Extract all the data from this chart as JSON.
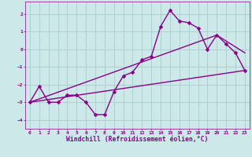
{
  "xlabel": "Windchill (Refroidissement éolien,°C)",
  "ylabel": "",
  "bg_color": "#cce8e8",
  "grid_color": "#aacccc",
  "line_color": "#880088",
  "xlim": [
    -0.5,
    23.5
  ],
  "ylim": [
    -4.5,
    2.7
  ],
  "xticks": [
    0,
    1,
    2,
    3,
    4,
    5,
    6,
    7,
    8,
    9,
    10,
    11,
    12,
    13,
    14,
    15,
    16,
    17,
    18,
    19,
    20,
    21,
    22,
    23
  ],
  "yticks": [
    -4,
    -3,
    -2,
    -1,
    0,
    1,
    2
  ],
  "line1_x": [
    0,
    1,
    2,
    3,
    4,
    5,
    6,
    7,
    8,
    9,
    10,
    11,
    12,
    13,
    14,
    15,
    16,
    17,
    18,
    19,
    20,
    21,
    22,
    23
  ],
  "line1_y": [
    -3.0,
    -2.1,
    -3.0,
    -3.0,
    -2.6,
    -2.6,
    -3.0,
    -3.7,
    -3.7,
    -2.4,
    -1.5,
    -1.3,
    -0.6,
    -0.4,
    1.3,
    2.2,
    1.6,
    1.5,
    1.2,
    0.0,
    0.8,
    0.3,
    -0.2,
    -1.2
  ],
  "line2_x": [
    0,
    23
  ],
  "line2_y": [
    -3.0,
    -1.2
  ],
  "line3_x": [
    0,
    20,
    23
  ],
  "line3_y": [
    -3.0,
    0.8,
    -0.2
  ],
  "marker": "D",
  "marker_size": 2.5,
  "linewidth": 1.0,
  "tick_fontsize": 4.5,
  "label_fontsize": 5.8
}
